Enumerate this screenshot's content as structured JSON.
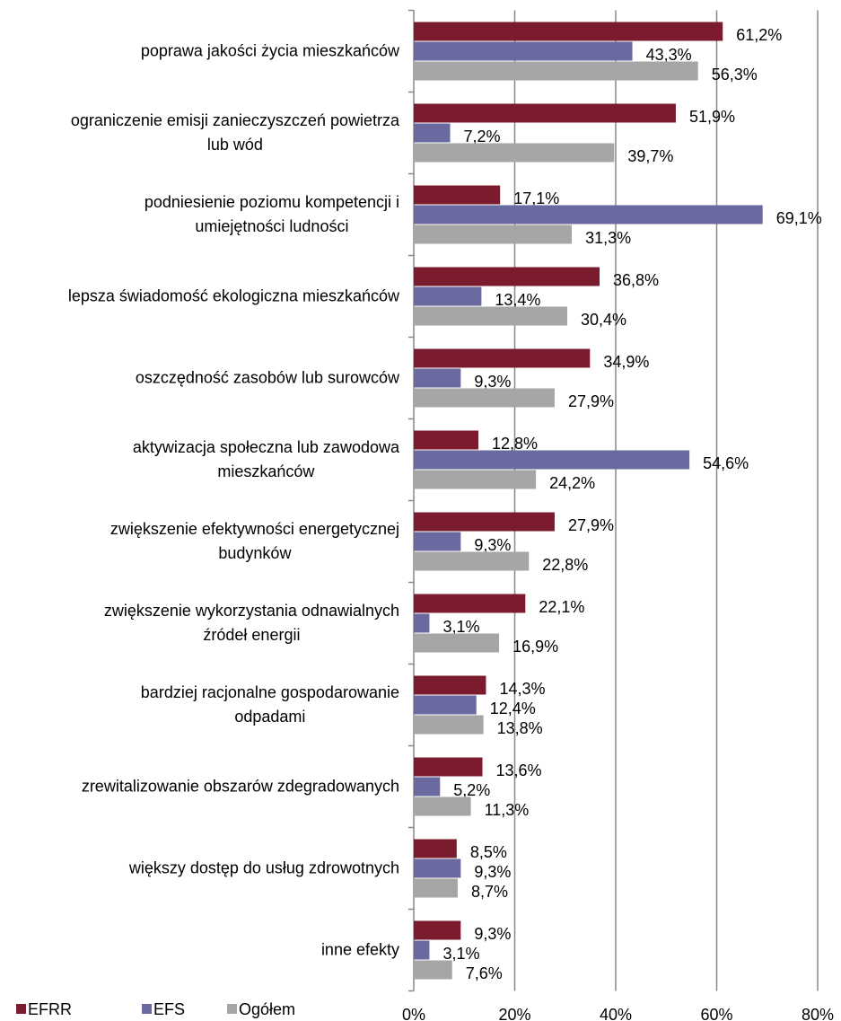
{
  "chart_data": {
    "type": "bar",
    "orientation": "horizontal",
    "categories": [
      "poprawa jakości życia mieszkańców",
      "ograniczenie emisji zanieczyszczeń powietrza\nlub wód",
      "podniesienie poziomu kompetencji i\numiejętności ludności",
      "lepsza świadomość ekologiczna mieszkańców",
      "oszczędność zasobów lub surowców",
      "aktywizacja społeczna lub zawodowa\nmieszkańców",
      "zwiększenie efektywności energetycznej\nbudynków",
      "zwiększenie wykorzystania odnawialnych\nźródeł energii",
      "bardziej racjonalne gospodarowanie\nodpadami",
      "zrewitalizowanie obszarów zdegradowanych",
      "większy dostęp do usług zdrowotnych",
      "inne efekty"
    ],
    "series": [
      {
        "name": "EFRR",
        "color": "#7b1c2e",
        "values": [
          61.2,
          51.9,
          17.1,
          36.8,
          34.9,
          12.8,
          27.9,
          22.1,
          14.3,
          13.6,
          8.5,
          9.3
        ],
        "value_labels": [
          "61,2%",
          "51,9%",
          "17,1%",
          "36,8%",
          "34,9%",
          "12,8%",
          "27,9%",
          "22,1%",
          "14,3%",
          "13,6%",
          "8,5%",
          "9,3%"
        ]
      },
      {
        "name": "EFS",
        "color": "#6a6aa0",
        "values": [
          43.3,
          7.2,
          69.1,
          13.4,
          9.3,
          54.6,
          9.3,
          3.1,
          12.4,
          5.2,
          9.3,
          3.1
        ],
        "value_labels": [
          "43,3%",
          "7,2%",
          "69,1%",
          "13,4%",
          "9,3%",
          "54,6%",
          "9,3%",
          "3,1%",
          "12,4%",
          "5,2%",
          "9,3%",
          "3,1%"
        ]
      },
      {
        "name": "Ogółem",
        "color": "#a6a6a6",
        "values": [
          56.3,
          39.7,
          31.3,
          30.4,
          27.9,
          24.2,
          22.8,
          16.9,
          13.8,
          11.3,
          8.7,
          7.6
        ],
        "value_labels": [
          "56,3%",
          "39,7%",
          "31,3%",
          "30,4%",
          "27,9%",
          "24,2%",
          "22,8%",
          "16,9%",
          "13,8%",
          "11,3%",
          "8,7%",
          "7,6%"
        ]
      }
    ],
    "xlim": [
      0,
      80
    ],
    "xticks": [
      {
        "value": 0,
        "label": "0%"
      },
      {
        "value": 20,
        "label": "20%"
      },
      {
        "value": 40,
        "label": "40%"
      },
      {
        "value": 60,
        "label": "60%"
      },
      {
        "value": 80,
        "label": "80%"
      }
    ],
    "grid": true,
    "legend": "bottom-left"
  }
}
